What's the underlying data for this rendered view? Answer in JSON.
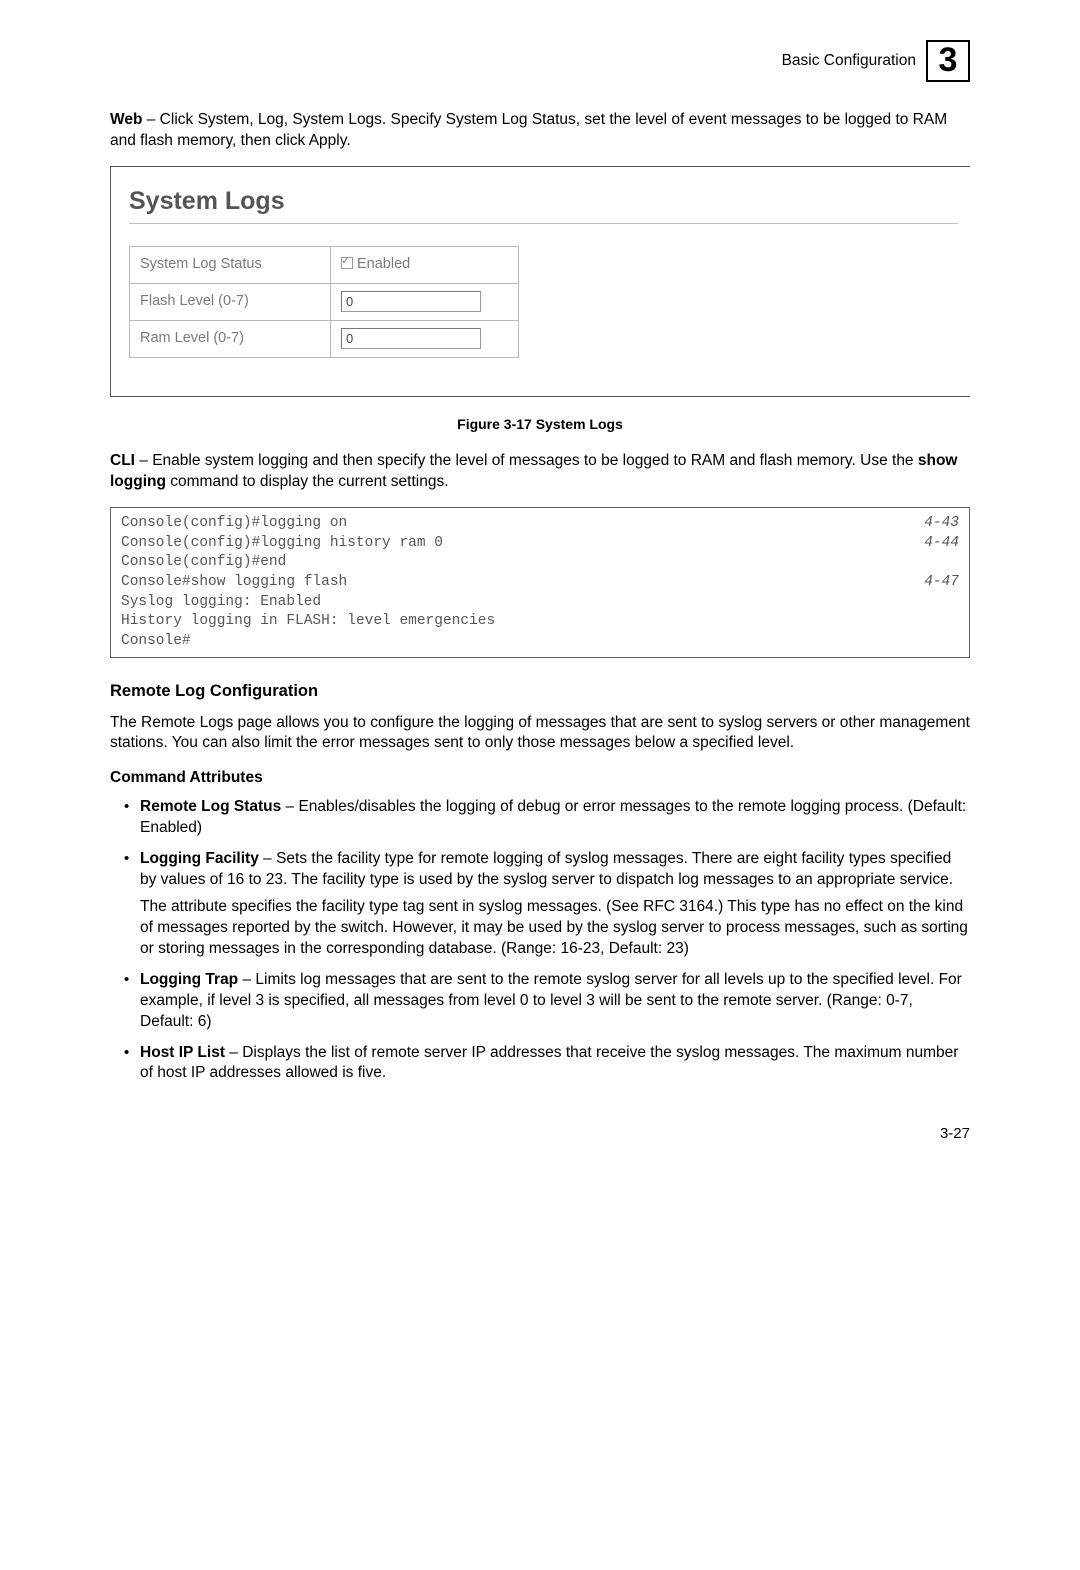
{
  "header": {
    "section": "Basic Configuration",
    "chapter": "3"
  },
  "web_para": {
    "prefix_bold": "Web",
    "body": " – Click System, Log, System Logs. Specify System Log Status, set the level of event messages to be logged to RAM and flash memory, then click Apply."
  },
  "figbox": {
    "title": "System Logs",
    "rows": {
      "r1": {
        "label": "System Log Status",
        "enabled_label": "Enabled"
      },
      "r2": {
        "label": "Flash Level (0-7)",
        "value": "0"
      },
      "r3": {
        "label": "Ram Level (0-7)",
        "value": "0"
      }
    }
  },
  "fig_caption": "Figure 3-17  System Logs",
  "cli_para": {
    "prefix_bold": "CLI",
    "body_a": " – Enable system logging and then specify the level of messages to be logged to RAM and flash memory. Use the ",
    "bold_cmd": "show logging",
    "body_b": " command to display the current settings."
  },
  "code": {
    "lines": [
      {
        "t": "Console(config)#logging on",
        "ref": "4-43"
      },
      {
        "t": "Console(config)#logging history ram 0",
        "ref": "4-44"
      },
      {
        "t": "Console(config)#end",
        "ref": ""
      },
      {
        "t": "Console#show logging flash",
        "ref": "4-47"
      },
      {
        "t": "Syslog logging: Enabled",
        "ref": ""
      },
      {
        "t": "History logging in FLASH: level emergencies",
        "ref": ""
      },
      {
        "t": "Console#",
        "ref": ""
      }
    ]
  },
  "remote_h": "Remote Log Configuration",
  "remote_p": "The Remote Logs page allows you to configure the logging of messages that are sent to syslog servers or other management stations. You can also limit the error messages sent to only those messages below a specified level.",
  "cmd_attr_h": "Command Attributes",
  "bullets": {
    "b1": {
      "bold": "Remote Log Status",
      "rest": " – Enables/disables the logging of debug or error messages to the remote logging process. (Default: Enabled)"
    },
    "b2": {
      "bold": "Logging Facility",
      "rest": " – Sets the facility type for remote logging of syslog messages. There are eight facility types specified by values of 16 to 23. The facility type is used by the syslog server to dispatch log messages to an appropriate service.",
      "sub": "The attribute specifies the facility type tag sent in syslog messages. (See RFC 3164.) This type has no effect on the kind of messages reported by the switch. However, it may be used by the syslog server to process messages, such as sorting or storing messages in the corresponding database. (Range: 16-23, Default: 23)"
    },
    "b3": {
      "bold": "Logging Trap",
      "rest": " – Limits log messages that are sent to the remote syslog server for all levels up to the specified level. For example, if level 3 is specified, all messages from level 0 to level 3 will be sent to the remote server. (Range: 0-7, Default: 6)"
    },
    "b4": {
      "bold": "Host IP List",
      "rest": " – Displays the list of remote server IP addresses that receive the syslog messages. The maximum number of host IP addresses allowed is five."
    }
  },
  "pagenum": "3-27"
}
